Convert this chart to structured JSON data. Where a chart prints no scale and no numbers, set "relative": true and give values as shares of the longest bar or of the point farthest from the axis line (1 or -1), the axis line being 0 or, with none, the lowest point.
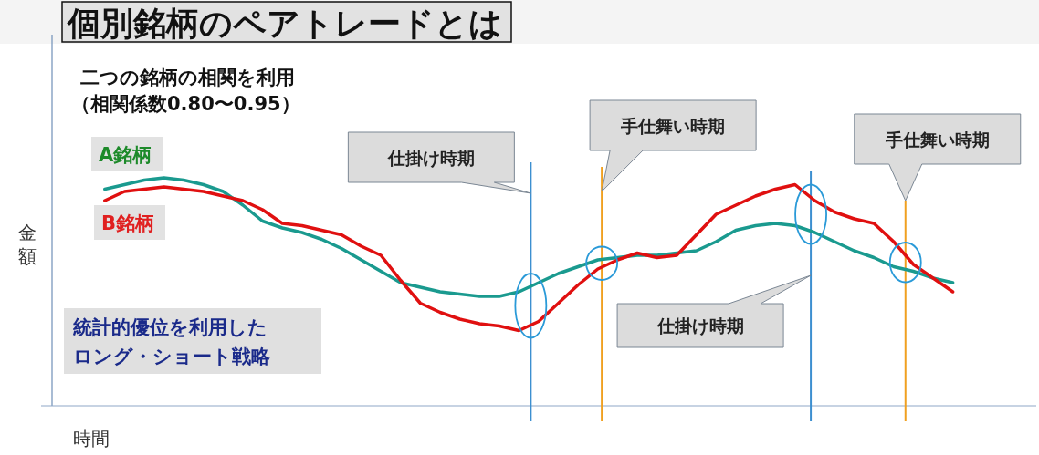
{
  "chart_data": {
    "type": "line",
    "relative": true,
    "title": "個別銘柄のペアトレードとは",
    "xlabel": "時間",
    "ylabel": "金額",
    "marker": "none",
    "line_style": "solid",
    "annotations": [
      "二つの銘柄の相関を利用",
      "（相関係数0.80〜0.95）",
      "統計的優位を利用した",
      "ロング・ショート戦略",
      "仕掛け時期",
      "手仕舞い時期",
      "仕掛け時期",
      "手仕舞い時期"
    ],
    "categories": [
      null,
      null,
      null,
      null,
      null,
      null,
      null,
      null,
      null,
      null,
      null,
      null,
      null,
      null,
      null,
      null,
      null,
      null,
      null,
      null,
      null,
      null,
      null,
      null,
      null,
      null,
      null,
      null,
      null,
      null,
      null,
      null,
      null,
      null,
      null,
      null,
      null,
      null,
      null,
      null,
      null,
      null,
      null,
      null
    ],
    "series": [
      {
        "name": "A銘柄",
        "color": "#1a9a8f",
        "values": [
          0.95,
          0.97,
          0.99,
          1.0,
          0.99,
          0.97,
          0.94,
          0.88,
          0.81,
          0.78,
          0.76,
          0.73,
          0.69,
          0.64,
          0.59,
          0.54,
          0.52,
          0.5,
          0.49,
          0.48,
          0.48,
          0.5,
          0.54,
          0.58,
          0.61,
          0.64,
          0.65,
          0.66,
          0.66,
          0.67,
          0.68,
          0.72,
          0.77,
          0.79,
          0.8,
          0.79,
          0.76,
          0.72,
          0.68,
          0.65,
          0.61,
          0.59,
          0.56,
          0.54
        ]
      },
      {
        "name": "B銘柄",
        "color": "#e01010",
        "values": [
          0.9,
          0.94,
          0.95,
          0.96,
          0.95,
          0.94,
          0.92,
          0.9,
          0.86,
          0.8,
          0.79,
          0.77,
          0.75,
          0.7,
          0.66,
          0.55,
          0.45,
          0.41,
          0.38,
          0.36,
          0.35,
          0.33,
          0.37,
          0.45,
          0.53,
          0.6,
          0.64,
          0.67,
          0.65,
          0.66,
          0.75,
          0.84,
          0.88,
          0.92,
          0.95,
          0.97,
          0.9,
          0.85,
          0.82,
          0.8,
          0.72,
          0.62,
          0.56,
          0.5
        ]
      }
    ]
  }
}
